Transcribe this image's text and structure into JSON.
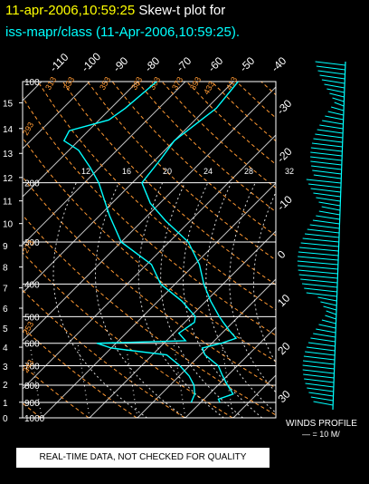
{
  "header": {
    "timestamp": "11-apr-2006,10:59:25",
    "plot_type": "Skew-t plot for",
    "station_line": "iss-mapr/class (11-Apr-2006,10:59:25)."
  },
  "footer": {
    "notice": "REAL-TIME DATA, NOT CHECKED FOR QUALITY"
  },
  "colors": {
    "background": "#000000",
    "sounding": "#00ffff",
    "isobar": "#ffffff",
    "isotherm": "#c0c0c0",
    "dry_adiabat": "#ff9933",
    "moist_adiabat": "#ffffff",
    "mixing_ratio": "#ffffff",
    "temp_label": "#ffffff",
    "km_label": "#ffffff"
  },
  "chart_data": {
    "type": "line",
    "title": "",
    "pressure_levels": [
      1000,
      900,
      800,
      700,
      600,
      500,
      400,
      300,
      200,
      100
    ],
    "pressure_labels": [
      "1000",
      "900",
      "800",
      "700",
      "600",
      "500",
      "400",
      "300",
      "200",
      "100"
    ],
    "pressure_range_mb": [
      1000,
      100
    ],
    "height_ticks_km": [
      "0",
      "1",
      "2",
      "3",
      "4",
      "5",
      "6",
      "7",
      "8",
      "9",
      "10",
      "11",
      "12",
      "13",
      "14",
      "15",
      "16"
    ],
    "top_temperature_labels": [
      "-110",
      "-100",
      "-90",
      "-80",
      "-70",
      "-60",
      "-50",
      "-40"
    ],
    "right_temperature_labels": [
      "-30",
      "-20",
      "-10",
      "0",
      "10",
      "20",
      "30"
    ],
    "dry_adiabat_labels": [
      "433",
      "413",
      "393",
      "373",
      "353",
      "333",
      "313",
      "293",
      "273",
      "253",
      "243",
      "383",
      "363"
    ],
    "moist_adiabat_labels": [
      "12",
      "16",
      "20",
      "24",
      "28",
      "32"
    ],
    "series": [
      {
        "name": "",
        "type": "temperature",
        "points": [
          [
            900,
            4
          ],
          [
            880,
            3
          ],
          [
            850,
            5
          ],
          [
            800,
            2
          ],
          [
            750,
            -1
          ],
          [
            700,
            -4
          ],
          [
            650,
            -9
          ],
          [
            620,
            -11
          ],
          [
            600,
            -8
          ],
          [
            580,
            -6
          ],
          [
            550,
            -9
          ],
          [
            520,
            -12
          ],
          [
            500,
            -14
          ],
          [
            450,
            -19
          ],
          [
            400,
            -24
          ],
          [
            350,
            -29
          ],
          [
            300,
            -36
          ],
          [
            260,
            -45
          ],
          [
            230,
            -52
          ],
          [
            200,
            -58
          ],
          [
            170,
            -59
          ],
          [
            150,
            -60
          ],
          [
            120,
            -58
          ],
          [
            100,
            -59
          ]
        ]
      },
      {
        "name": "",
        "type": "dewpoint",
        "points": [
          [
            900,
            -2
          ],
          [
            850,
            -3
          ],
          [
            800,
            -5
          ],
          [
            750,
            -8
          ],
          [
            700,
            -12
          ],
          [
            650,
            -17
          ],
          [
            620,
            -30
          ],
          [
            600,
            -34
          ],
          [
            590,
            -16
          ],
          [
            560,
            -19
          ],
          [
            520,
            -18
          ],
          [
            500,
            -19
          ],
          [
            450,
            -25
          ],
          [
            400,
            -33
          ],
          [
            350,
            -39
          ],
          [
            300,
            -50
          ],
          [
            250,
            -58
          ],
          [
            200,
            -67
          ],
          [
            180,
            -72
          ],
          [
            160,
            -78
          ],
          [
            150,
            -83
          ],
          [
            140,
            -84
          ],
          [
            130,
            -78
          ],
          [
            120,
            -77
          ],
          [
            100,
            -76
          ]
        ]
      }
    ],
    "wind_profile": {
      "label": "WINDS PROFILE",
      "scale_label": "— = 10 M/"
    }
  }
}
